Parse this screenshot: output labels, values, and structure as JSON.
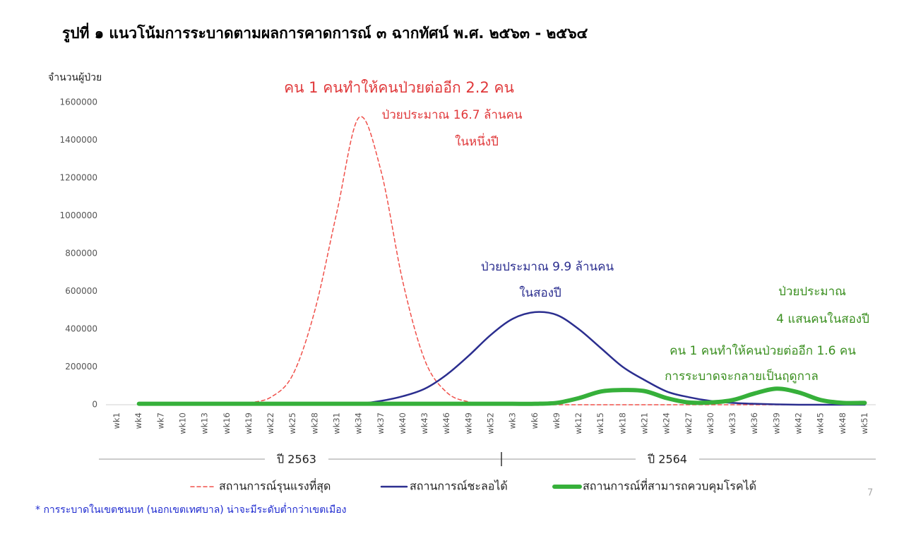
{
  "chart_data": {
    "type": "line",
    "title": "รูปที่ ๑ แนวโน้มการระบาดตามผลการคาดการณ์ ๓ ฉากทัศน์ พ.ศ. ๒๕๖๓ - ๒๕๖๔",
    "y_label": "จำนวนผู้ป่วย",
    "categories": [
      "wk1",
      "wk4",
      "wk7",
      "wk10",
      "wk13",
      "wk16",
      "wk19",
      "wk22",
      "wk25",
      "wk28",
      "wk31",
      "wk34",
      "wk37",
      "wk40",
      "wk43",
      "wk46",
      "wk49",
      "wk52",
      "wk3",
      "wk6",
      "wk9",
      "wk12",
      "wk15",
      "wk18",
      "wk21",
      "wk24",
      "wk27",
      "wk30",
      "wk33",
      "wk36",
      "wk39",
      "wk42",
      "wk45",
      "wk48",
      "wk51"
    ],
    "year_labels": [
      "ปี 2563",
      "ปี 2564"
    ],
    "ylim": [
      0,
      1600000
    ],
    "yticks": [
      0,
      200000,
      400000,
      600000,
      800000,
      1000000,
      1200000,
      1400000,
      1600000
    ],
    "grid": false,
    "legend": "bottom",
    "series": [
      {
        "name": "สถานการณ์รุนแรงที่สุด",
        "color": "#f0504a",
        "line_style": "dashed",
        "line_width": 1.5,
        "values": [
          null,
          null,
          null,
          null,
          null,
          null,
          10000,
          40000,
          160000,
          500000,
          1020000,
          1520000,
          1240000,
          650000,
          235000,
          65000,
          15000,
          3000,
          0,
          0,
          0,
          0,
          0,
          0,
          0,
          0,
          0,
          0,
          0,
          0,
          0,
          0,
          0,
          0,
          0
        ]
      },
      {
        "name": "สถานการณ์ชะลอได้",
        "color": "#2b2e8f",
        "line_style": "solid",
        "line_width": 2.5,
        "values": [
          null,
          null,
          null,
          null,
          null,
          null,
          null,
          null,
          null,
          0,
          0,
          5000,
          20000,
          45000,
          85000,
          160000,
          260000,
          370000,
          455000,
          490000,
          475000,
          400000,
          300000,
          200000,
          130000,
          70000,
          40000,
          20000,
          10000,
          5000,
          2000,
          0,
          0,
          0,
          0
        ]
      },
      {
        "name": "สถานการณ์ที่สามารถควบคุมโรคได้",
        "color": "#36b03a",
        "line_style": "solid",
        "line_width": 6,
        "values": [
          null,
          5000,
          5000,
          5000,
          5000,
          5000,
          5000,
          5000,
          5000,
          5000,
          5000,
          5000,
          5000,
          5000,
          5000,
          5000,
          5000,
          5000,
          5000,
          5000,
          10000,
          35000,
          70000,
          78000,
          72000,
          35000,
          12000,
          12000,
          25000,
          60000,
          85000,
          65000,
          25000,
          10000,
          10000
        ]
      }
    ],
    "annotations": [
      {
        "text": "คน 1 คนทำให้คนป่วยต่ออีก 2.2 คน",
        "color": "#e0383a"
      },
      {
        "text": "ป่วยประมาณ 16.7 ล้านคน",
        "color": "#e0383a"
      },
      {
        "text": "ในหนึ่งปี",
        "color": "#e0383a"
      },
      {
        "text": "ป่วยประมาณ 9.9 ล้านคน",
        "color": "#2b2e8f"
      },
      {
        "text": "ในสองปี",
        "color": "#2b2e8f"
      },
      {
        "text": "ป่วยประมาณ",
        "color": "#3a8f1f"
      },
      {
        "text": "4 แสนคนในสองปี",
        "color": "#3a8f1f"
      },
      {
        "text": "คน 1 คนทำให้คนป่วยต่ออีก 1.6 คน",
        "color": "#3a8f1f"
      },
      {
        "text": "การระบาดจะกลายเป็นฤดูกาล",
        "color": "#3a8f1f"
      }
    ]
  },
  "footnote": "* การระบาดในเขตชนบท (นอกเขตเทศบาล) น่าจะมีระดับต่ำกว่าเขตเมือง",
  "page_number": "7"
}
